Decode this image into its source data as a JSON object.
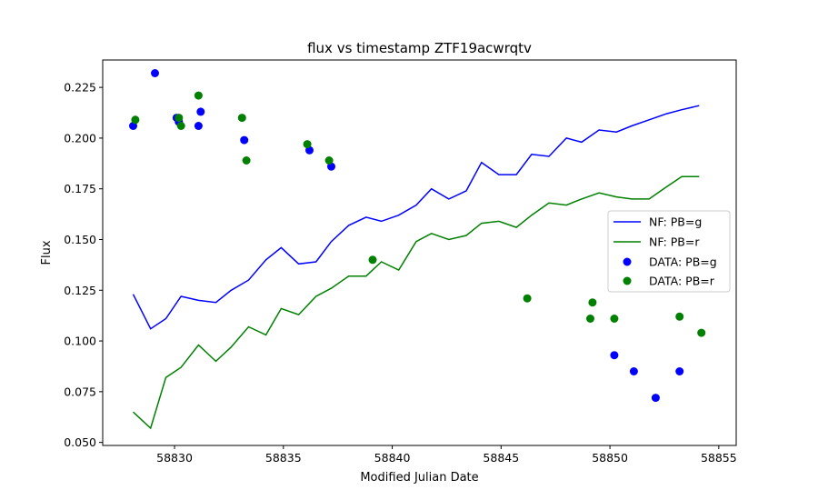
{
  "chart_data": {
    "type": "line",
    "title": "flux vs timestamp ZTF19acwrqtv",
    "xlabel": "Modified Julian Date",
    "ylabel": "Flux",
    "xlim": [
      58826.7,
      58855.8
    ],
    "ylim": [
      0.0485,
      0.2385
    ],
    "xticks": [
      58830,
      58835,
      58840,
      58845,
      58850,
      58855
    ],
    "yticks": [
      0.05,
      0.075,
      0.1,
      0.125,
      0.15,
      0.175,
      0.2,
      0.225
    ],
    "xtick_labels": [
      "58830",
      "58835",
      "58840",
      "58845",
      "58850",
      "58855"
    ],
    "ytick_labels": [
      "0.050",
      "0.075",
      "0.100",
      "0.125",
      "0.150",
      "0.175",
      "0.200",
      "0.225"
    ],
    "grid": false,
    "legend_position": "center-right",
    "series": [
      {
        "name": "NF: PB=g",
        "kind": "line",
        "color": "#0000ff",
        "x": [
          58828.1,
          58828.9,
          58829.6,
          58830.3,
          58831.1,
          58831.9,
          58832.6,
          58833.4,
          58834.2,
          58834.9,
          58835.7,
          58836.5,
          58837.2,
          58838.0,
          58838.8,
          58839.5,
          58840.3,
          58841.1,
          58841.8,
          58842.6,
          58843.4,
          58844.1,
          58844.9,
          58845.7,
          58846.4,
          58847.2,
          58848.0,
          58848.7,
          58849.5,
          58850.3,
          58851.0,
          58851.8,
          58852.6,
          58853.3,
          58854.1
        ],
        "values": [
          0.123,
          0.106,
          0.111,
          0.122,
          0.12,
          0.119,
          0.125,
          0.13,
          0.14,
          0.146,
          0.138,
          0.139,
          0.149,
          0.157,
          0.161,
          0.159,
          0.162,
          0.167,
          0.175,
          0.17,
          0.174,
          0.188,
          0.182,
          0.182,
          0.192,
          0.191,
          0.2,
          0.198,
          0.204,
          0.203,
          0.206,
          0.209,
          0.212,
          0.214,
          0.216
        ]
      },
      {
        "name": "NF: PB=r",
        "kind": "line",
        "color": "#008000",
        "x": [
          58828.1,
          58828.9,
          58829.6,
          58830.3,
          58831.1,
          58831.9,
          58832.6,
          58833.4,
          58834.2,
          58834.9,
          58835.7,
          58836.5,
          58837.2,
          58838.0,
          58838.8,
          58839.5,
          58840.3,
          58841.1,
          58841.8,
          58842.6,
          58843.4,
          58844.1,
          58844.9,
          58845.7,
          58846.4,
          58847.2,
          58848.0,
          58848.7,
          58849.5,
          58850.3,
          58851.0,
          58851.8,
          58852.6,
          58853.3,
          58854.1
        ],
        "values": [
          0.065,
          0.057,
          0.082,
          0.087,
          0.098,
          0.09,
          0.097,
          0.107,
          0.103,
          0.116,
          0.113,
          0.122,
          0.126,
          0.132,
          0.132,
          0.139,
          0.135,
          0.149,
          0.153,
          0.15,
          0.152,
          0.158,
          0.159,
          0.156,
          0.162,
          0.168,
          0.167,
          0.17,
          0.173,
          0.171,
          0.17,
          0.17,
          0.176,
          0.181,
          0.181
        ]
      },
      {
        "name": "DATA: PB=g",
        "kind": "scatter",
        "color": "#0000ff",
        "x": [
          58828.1,
          58829.1,
          58830.1,
          58830.2,
          58831.1,
          58831.2,
          58833.2,
          58836.2,
          58837.2,
          58850.2,
          58851.1,
          58852.1,
          58853.2
        ],
        "values": [
          0.206,
          0.232,
          0.21,
          0.208,
          0.206,
          0.213,
          0.199,
          0.194,
          0.186,
          0.093,
          0.085,
          0.072,
          0.085
        ]
      },
      {
        "name": "DATA: PB=r",
        "kind": "scatter",
        "color": "#008000",
        "x": [
          58828.2,
          58830.2,
          58830.3,
          58831.1,
          58833.1,
          58833.3,
          58836.1,
          58837.1,
          58839.1,
          58846.2,
          58849.1,
          58849.2,
          58850.2,
          58853.2,
          58854.2
        ],
        "values": [
          0.209,
          0.21,
          0.206,
          0.221,
          0.21,
          0.189,
          0.197,
          0.189,
          0.14,
          0.121,
          0.111,
          0.119,
          0.111,
          0.112,
          0.104
        ]
      }
    ]
  }
}
